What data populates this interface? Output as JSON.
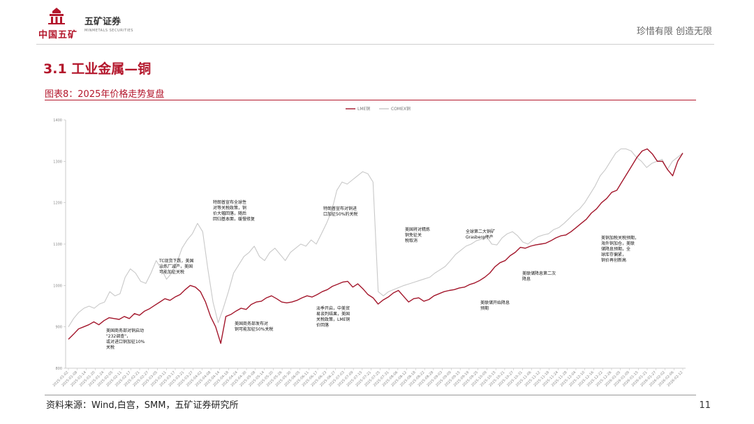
{
  "header": {
    "logo_cn": "中国五矿",
    "brand_cn": "五矿证券",
    "brand_en": "MINMETALS SECURITIES",
    "slogan": "珍惜有限  创造无限"
  },
  "section_title": "3.1 工业金属—铜",
  "figure_title": "图表8：2025年价格走势复盘",
  "source": "资料来源：Wind,白宫，SMM，五矿证券研究所",
  "page_number": "11",
  "colors": {
    "accent": "#b3162b",
    "series_lme": "#a3162b",
    "series_comex": "#c8c8c8"
  },
  "chart_data": {
    "type": "line",
    "legend_position": "top-center",
    "grid": false,
    "ylim": [
      800,
      1400
    ],
    "yticks": [
      "1400",
      "1300",
      "1200",
      "1100",
      "1000",
      "900",
      "800"
    ],
    "xticks": [
      "2025-01-02",
      "2025-01-08",
      "2025-01-14",
      "2025-01-20",
      "2025-01-24",
      "2025-02-05",
      "2025-02-11",
      "2025-02-17",
      "2025-02-21",
      "2025-02-27",
      "2025-03-05",
      "2025-03-11",
      "2025-03-17",
      "2025-03-21",
      "2025-03-27",
      "2025-04-02",
      "2025-04-08",
      "2025-04-14",
      "2025-04-18",
      "2025-04-24",
      "2025-04-30",
      "2025-05-08",
      "2025-05-14",
      "2025-05-20",
      "2025-05-26",
      "2025-05-30",
      "2025-06-05",
      "2025-06-11",
      "2025-06-17",
      "2025-06-23",
      "2025-06-27",
      "2025-07-03",
      "2025-07-09",
      "2025-07-15",
      "2025-07-21",
      "2025-07-25",
      "2025-07-31",
      "2025-08-06",
      "2025-08-12",
      "2025-08-18",
      "2025-08-22",
      "2025-08-28",
      "2025-09-03",
      "2025-09-09",
      "2025-09-15",
      "2025-09-19",
      "2025-09-25",
      "2025-10-09",
      "2025-10-15",
      "2025-10-21",
      "2025-10-27",
      "2025-10-31",
      "2025-11-06",
      "2025-11-12",
      "2025-11-18",
      "2025-11-24",
      "2025-11-28",
      "2025-12-04",
      "2025-12-10",
      "2025-12-16",
      "2025-12-22",
      "2025-12-26",
      "2026-01-05",
      "2026-01-09",
      "2026-01-15",
      "2026-01-21",
      "2026-01-27",
      "2026-02-02",
      "2026-02-06",
      "2026-02-12"
    ],
    "series": [
      {
        "name": "LME铜",
        "values": [
          870,
          882,
          895,
          900,
          905,
          912,
          905,
          915,
          922,
          920,
          918,
          925,
          920,
          932,
          928,
          938,
          944,
          952,
          960,
          968,
          964,
          972,
          978,
          990,
          1000,
          996,
          985,
          960,
          925,
          900,
          860,
          925,
          930,
          938,
          945,
          942,
          954,
          960,
          962,
          970,
          975,
          968,
          960,
          958,
          960,
          964,
          970,
          975,
          972,
          978,
          985,
          990,
          998,
          1003,
          1008,
          1010,
          996,
          1004,
          992,
          978,
          970,
          955,
          965,
          972,
          982,
          988,
          974,
          960,
          968,
          970,
          962,
          966,
          975,
          980,
          985,
          988,
          990,
          994,
          996,
          1002,
          1006,
          1012,
          1020,
          1030,
          1045,
          1055,
          1060,
          1072,
          1080,
          1092,
          1090,
          1095,
          1098,
          1100,
          1102,
          1108,
          1115,
          1120,
          1122,
          1130,
          1140,
          1150,
          1160,
          1175,
          1185,
          1200,
          1210,
          1225,
          1230,
          1250,
          1270,
          1290,
          1310,
          1325,
          1330,
          1318,
          1300,
          1300,
          1280,
          1265,
          1300,
          1320
        ]
      },
      {
        "name": "COMEX铜",
        "values": [
          900,
          920,
          935,
          945,
          950,
          945,
          955,
          960,
          985,
          975,
          980,
          1020,
          1040,
          1030,
          1010,
          1005,
          1030,
          1060,
          1040,
          1015,
          1030,
          1055,
          1090,
          1110,
          1125,
          1150,
          1130,
          1040,
          960,
          910,
          945,
          985,
          1030,
          1050,
          1070,
          1080,
          1095,
          1070,
          1060,
          1080,
          1090,
          1075,
          1060,
          1080,
          1090,
          1100,
          1095,
          1110,
          1100,
          1125,
          1150,
          1180,
          1230,
          1250,
          1245,
          1255,
          1265,
          1275,
          1270,
          1250,
          985,
          975,
          985,
          990,
          995,
          1000,
          1004,
          1008,
          1012,
          1016,
          1020,
          1030,
          1038,
          1046,
          1060,
          1075,
          1085,
          1095,
          1100,
          1108,
          1112,
          1118,
          1100,
          1098,
          1115,
          1125,
          1130,
          1120,
          1105,
          1100,
          1110,
          1118,
          1122,
          1125,
          1135,
          1140,
          1150,
          1162,
          1175,
          1185,
          1200,
          1220,
          1240,
          1265,
          1280,
          1300,
          1320,
          1330,
          1330,
          1325,
          1310,
          1300,
          1285,
          1295,
          1300,
          1305,
          1280,
          1300,
          1310,
          1320
        ]
      }
    ],
    "annotations": [
      {
        "lines": [
          "美国商务部对铜启动",
          "\"232调查\"，",
          "或对进口铜加征10%",
          "关税"
        ]
      },
      {
        "lines": [
          "TC现货下跌，美国",
          "冶炼厂减产，美国",
          "可能加征关税"
        ]
      },
      {
        "lines": [
          "特朗普宣布全球性",
          "对等关税政策，铜",
          "价大幅回落，随后",
          "回归基本面，缓慢修复"
        ]
      },
      {
        "lines": [
          "美国商务部发布对",
          "铜可能加征50%关税"
        ]
      },
      {
        "lines": [
          "特朗普宣布对铜进",
          "口加征50%的关税"
        ]
      },
      {
        "lines": [
          "淡季开启，中美贸",
          "易谈判结果，美国",
          "关税政策，LME铜",
          "价回落"
        ]
      },
      {
        "lines": [
          "美国将对精炼",
          "铜免征关",
          "税取消"
        ]
      },
      {
        "lines": [
          "全球第二大铜矿",
          "Grasberg停产"
        ]
      },
      {
        "lines": [
          "美联储开始降息",
          "预期"
        ]
      },
      {
        "lines": [
          "美联储降息第二次",
          "降息"
        ]
      },
      {
        "lines": [
          "美铜加税关税预期，",
          "海外铜加仓，美联",
          "储降息预期，全",
          "球库存偏紧，",
          "铜价再创新高"
        ]
      }
    ]
  }
}
